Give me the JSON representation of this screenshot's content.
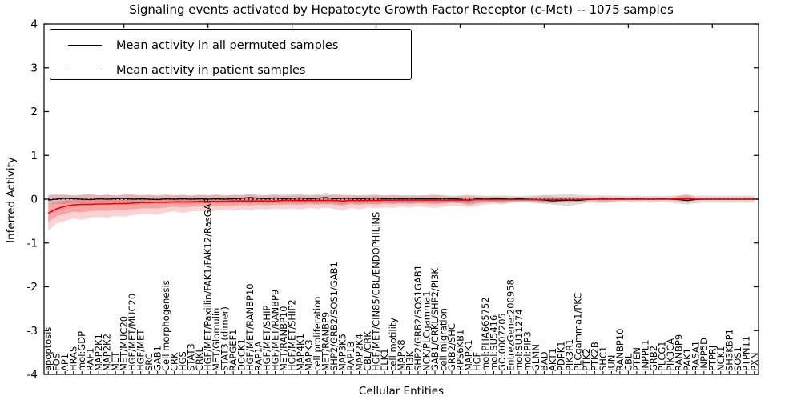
{
  "title": "Signaling events activated by Hepatocyte Growth Factor Receptor (c-Met) -- 1075 samples",
  "legend": {
    "items": [
      {
        "label": "Mean activity in all permuted samples",
        "color": "#000000"
      },
      {
        "label": "Mean activity in patient samples",
        "color": "#ff0000"
      }
    ]
  },
  "chart_data": {
    "type": "line",
    "title": "Signaling events activated by Hepatocyte Growth Factor Receptor (c-Met) -- 1075 samples",
    "xlabel": "Cellular Entities",
    "ylabel": "Inferred Activity",
    "ylim": [
      -4,
      4
    ],
    "yticks": [
      4,
      3,
      2,
      1,
      0,
      -1,
      -2,
      -3,
      -4
    ],
    "grid": false,
    "legend_position": "upper left",
    "zero_line": {
      "style": "dotted",
      "color": "#000000",
      "y": 0
    },
    "band_colors": {
      "permuted": "#a0a0a0",
      "patient": "#f03030"
    },
    "categories": [
      "apoptosis",
      "FOS",
      "AP1",
      "HRAS",
      "mol:GDP",
      "RAF1",
      "MAP2K1",
      "MAP2K2",
      "MET",
      "MET/MUC20",
      "HGF/MET/MUC20",
      "HGF/MET",
      "SRC",
      "GAB1",
      "Cell morphogenesis",
      "CRK",
      "HGS",
      "STAT3",
      "CRKL",
      "HGF/MET/Paxillin/FAK1/FAK12/RasGAP",
      "MET/Glomulin",
      "STAT3 (dimer)",
      "RAPGEF1",
      "DOCK1",
      "HGF/MET/RANBP10",
      "RAP1A",
      "HGF/MET/SHIP",
      "HGF/MET/RANBP9",
      "MET/RANBP10",
      "HGF/MET/SHIP2",
      "MAP4K1",
      "MAPK3",
      "cell proliferation",
      "MET/RANBP9",
      "SHP2/GRB2/SOS1/GAB1",
      "MAP3K5",
      "RAP1B",
      "MAP2K4",
      "CBL/CRK",
      "HGF/MET/CIN85/CBL/ENDOPHILINS",
      "ELK1",
      "cell motility",
      "MAPK8",
      "PI3K",
      "SHP2/GRB2/SOS1GAB1",
      "NCK/PLCgamma1",
      "GAB1/CRKL/SHP2/PI3K",
      "cell migration",
      "GRB2/SHC",
      "RPS6KB1",
      "MAPK1",
      "HGF",
      "mol:PHA665752",
      "mol:SU5416",
      "GO:0007205",
      "EntrezGene:200958",
      "mol:SU11274",
      "mol:PIP3",
      "GLMN",
      "BAD",
      "AKT1",
      "PDPK1",
      "PIK3R1",
      "PLCgamma1/PKC",
      "PTK2",
      "PTK2B",
      "SHC1",
      "JUN",
      "RANBP10",
      "CBL",
      "PTEN",
      "INPPL1",
      "GRB2",
      "PLCG1",
      "PIK3CA",
      "RANBP9",
      "PAK1",
      "RASA1",
      "INPP5D",
      "PTPRJ",
      "NCK1",
      "SH3KBP1",
      "SOS1",
      "PTPN11",
      "PXN"
    ],
    "series": [
      {
        "name": "Mean activity in all permuted samples",
        "color": "#000000",
        "values": [
          -0.02,
          0.0,
          0.02,
          0.01,
          0.0,
          -0.01,
          0.01,
          0.0,
          0.01,
          0.02,
          0.0,
          0.01,
          0.0,
          -0.01,
          0.01,
          0.0,
          0.01,
          0.0,
          0.01,
          0.0,
          0.01,
          0.0,
          0.01,
          0.02,
          0.04,
          0.02,
          0.01,
          0.03,
          0.01,
          0.02,
          0.03,
          0.01,
          0.02,
          0.04,
          0.01,
          0.02,
          0.02,
          0.01,
          0.02,
          0.03,
          0.01,
          0.02,
          0.01,
          0.02,
          0.01,
          0.01,
          0.01,
          0.02,
          0.01,
          0.0,
          -0.03,
          0.01,
          0.0,
          0.01,
          0.01,
          0.0,
          0.01,
          0.0,
          -0.01,
          -0.02,
          -0.04,
          -0.03,
          -0.02,
          -0.03,
          -0.01,
          0.0,
          0.01,
          0.0,
          0.01,
          0.0,
          0.01,
          0.0,
          0.0,
          0.01,
          0.0,
          -0.01,
          -0.03,
          -0.01,
          0.0,
          0.0,
          0.0,
          0.0,
          0.0,
          0.0,
          0.0
        ]
      },
      {
        "name": "Mean activity in patient samples",
        "color": "#ff0000",
        "values": [
          -0.32,
          -0.22,
          -0.16,
          -0.13,
          -0.12,
          -0.12,
          -0.11,
          -0.11,
          -0.1,
          -0.1,
          -0.09,
          -0.08,
          -0.08,
          -0.07,
          -0.07,
          -0.06,
          -0.06,
          -0.06,
          -0.05,
          -0.05,
          -0.05,
          -0.05,
          -0.04,
          -0.04,
          -0.04,
          -0.04,
          -0.04,
          -0.04,
          -0.03,
          -0.03,
          -0.03,
          -0.03,
          -0.03,
          -0.03,
          -0.03,
          -0.04,
          -0.03,
          -0.03,
          -0.03,
          -0.03,
          -0.02,
          -0.02,
          -0.02,
          -0.02,
          -0.02,
          -0.02,
          -0.02,
          -0.02,
          -0.02,
          -0.02,
          -0.02,
          -0.01,
          -0.01,
          -0.01,
          -0.01,
          -0.01,
          -0.01,
          -0.01,
          -0.01,
          -0.01,
          -0.01,
          -0.01,
          -0.01,
          -0.01,
          0.0,
          0.0,
          0.0,
          0.0,
          0.0,
          0.0,
          0.0,
          0.0,
          0.0,
          0.0,
          0.0,
          0.01,
          0.01,
          0.0,
          0.0,
          0.0,
          0.0,
          0.0,
          0.0,
          0.0,
          0.0
        ]
      }
    ],
    "bands": [
      {
        "name": "permuted-range",
        "color": "#a0a0a0",
        "opacity": 0.38,
        "low": [
          -0.12,
          -0.1,
          -0.11,
          -0.09,
          -0.1,
          -0.11,
          -0.09,
          -0.1,
          -0.09,
          -0.11,
          -0.1,
          -0.09,
          -0.1,
          -0.09,
          -0.1,
          -0.09,
          -0.1,
          -0.09,
          -0.1,
          -0.09,
          -0.1,
          -0.09,
          -0.1,
          -0.09,
          -0.1,
          -0.09,
          -0.1,
          -0.09,
          -0.1,
          -0.09,
          -0.1,
          -0.09,
          -0.1,
          -0.09,
          -0.1,
          -0.12,
          -0.09,
          -0.1,
          -0.09,
          -0.1,
          -0.09,
          -0.1,
          -0.09,
          -0.1,
          -0.09,
          -0.09,
          -0.1,
          -0.09,
          -0.08,
          -0.09,
          -0.14,
          -0.1,
          -0.08,
          -0.08,
          -0.09,
          -0.08,
          -0.07,
          -0.08,
          -0.09,
          -0.1,
          -0.12,
          -0.14,
          -0.16,
          -0.12,
          -0.09,
          -0.08,
          -0.09,
          -0.08,
          -0.08,
          -0.07,
          -0.08,
          -0.07,
          -0.08,
          -0.07,
          -0.08,
          -0.1,
          -0.12,
          -0.09,
          -0.08,
          -0.08,
          -0.08,
          -0.08,
          -0.08,
          -0.08,
          -0.08
        ],
        "high": [
          0.1,
          0.11,
          0.1,
          0.09,
          0.1,
          0.11,
          0.09,
          0.1,
          0.09,
          0.11,
          0.1,
          0.09,
          0.1,
          0.09,
          0.1,
          0.09,
          0.1,
          0.09,
          0.1,
          0.09,
          0.1,
          0.09,
          0.1,
          0.1,
          0.12,
          0.1,
          0.1,
          0.11,
          0.1,
          0.12,
          0.11,
          0.1,
          0.11,
          0.15,
          0.11,
          0.1,
          0.1,
          0.09,
          0.1,
          0.11,
          0.09,
          0.1,
          0.09,
          0.1,
          0.09,
          0.09,
          0.1,
          0.09,
          0.08,
          0.09,
          0.1,
          0.09,
          0.08,
          0.08,
          0.09,
          0.08,
          0.07,
          0.08,
          0.09,
          0.1,
          0.1,
          0.11,
          0.12,
          0.1,
          0.09,
          0.08,
          0.09,
          0.08,
          0.08,
          0.07,
          0.08,
          0.07,
          0.08,
          0.07,
          0.08,
          0.09,
          0.1,
          0.08,
          0.08,
          0.08,
          0.08,
          0.08,
          0.08,
          0.08,
          0.08
        ]
      },
      {
        "name": "patient-range",
        "color": "#f03030",
        "opacity": 0.22,
        "low": [
          -0.72,
          -0.55,
          -0.5,
          -0.44,
          -0.47,
          -0.42,
          -0.4,
          -0.42,
          -0.38,
          -0.4,
          -0.36,
          -0.34,
          -0.33,
          -0.35,
          -0.3,
          -0.28,
          -0.31,
          -0.28,
          -0.27,
          -0.29,
          -0.26,
          -0.24,
          -0.26,
          -0.23,
          -0.25,
          -0.22,
          -0.24,
          -0.21,
          -0.23,
          -0.21,
          -0.24,
          -0.2,
          -0.22,
          -0.19,
          -0.22,
          -0.26,
          -0.2,
          -0.23,
          -0.19,
          -0.21,
          -0.18,
          -0.2,
          -0.17,
          -0.19,
          -0.16,
          -0.18,
          -0.2,
          -0.17,
          -0.14,
          -0.16,
          -0.18,
          -0.15,
          -0.12,
          -0.1,
          -0.12,
          -0.08,
          -0.06,
          -0.05,
          -0.08,
          -0.1,
          -0.09,
          -0.07,
          -0.08,
          -0.06,
          -0.05,
          -0.04,
          -0.06,
          -0.05,
          -0.03,
          -0.03,
          -0.03,
          -0.02,
          -0.03,
          -0.02,
          -0.02,
          -0.05,
          -0.06,
          -0.03,
          -0.02,
          -0.02,
          -0.02,
          -0.02,
          -0.02,
          -0.02,
          -0.02
        ],
        "high": [
          0.1,
          0.09,
          0.11,
          0.08,
          0.1,
          0.12,
          0.09,
          0.11,
          0.08,
          0.1,
          0.12,
          0.09,
          0.1,
          0.08,
          0.11,
          0.09,
          0.1,
          0.08,
          0.1,
          0.09,
          0.11,
          0.08,
          0.1,
          0.09,
          0.11,
          0.08,
          0.09,
          0.1,
          0.08,
          0.09,
          0.1,
          0.08,
          0.09,
          0.08,
          0.1,
          0.09,
          0.08,
          0.09,
          0.08,
          0.09,
          0.08,
          0.09,
          0.08,
          0.07,
          0.08,
          0.09,
          0.1,
          0.08,
          0.06,
          0.07,
          0.08,
          0.06,
          0.05,
          0.06,
          0.05,
          0.04,
          0.05,
          0.04,
          0.06,
          0.08,
          0.07,
          0.05,
          0.06,
          0.05,
          0.04,
          0.03,
          0.05,
          0.04,
          0.03,
          0.02,
          0.03,
          0.02,
          0.03,
          0.02,
          0.02,
          0.08,
          0.12,
          0.04,
          0.02,
          0.02,
          0.02,
          0.02,
          0.02,
          0.02,
          0.02
        ]
      }
    ]
  }
}
